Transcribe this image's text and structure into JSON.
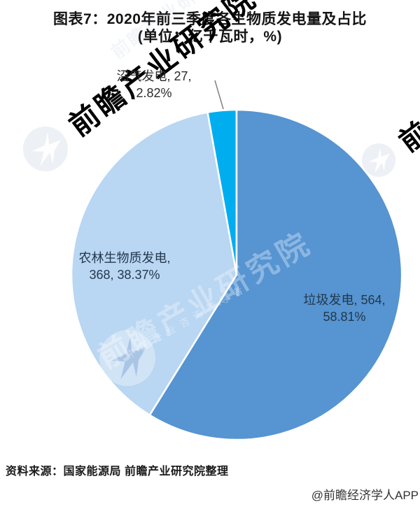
{
  "title": {
    "line1": "图表7：2020年前三季度各生物质发电量及占比",
    "line2": "(单位：亿千瓦时，%)"
  },
  "chart_data": {
    "type": "pie",
    "title": "2020年前三季度各生物质发电量及占比",
    "unit": "亿千瓦时，%",
    "direction": "clockwise",
    "start_angle": "12-oclock",
    "legend_position": "none",
    "slices": [
      {
        "id": "waste-power",
        "name": "垃圾发电",
        "value": 564,
        "pct": 58.81,
        "color": "#5694d2"
      },
      {
        "id": "agroforestry-biomass",
        "name": "农林生物质发电",
        "value": 368,
        "pct": 38.37,
        "color": "#b9d6f2"
      },
      {
        "id": "biogas",
        "name": "沼气发电",
        "value": 27,
        "pct": 2.82,
        "color": "#00aeef"
      }
    ]
  },
  "labels": {
    "biogas": {
      "line1": "沼气发电, 27,",
      "line2": "2.82%"
    },
    "agro": {
      "line1": "农林生物质发电,",
      "line2": "368, 38.37%"
    },
    "waste": {
      "line1": "垃圾发电, 564,",
      "line2": "58.81%"
    }
  },
  "watermark": {
    "brand": "前瞻产业研究院",
    "tagline": "中国产业咨询领导者"
  },
  "footer": {
    "source": "资料来源：国家能源局 前瞻产业研究院整理",
    "credit": "@前瞻经济学人APP"
  }
}
